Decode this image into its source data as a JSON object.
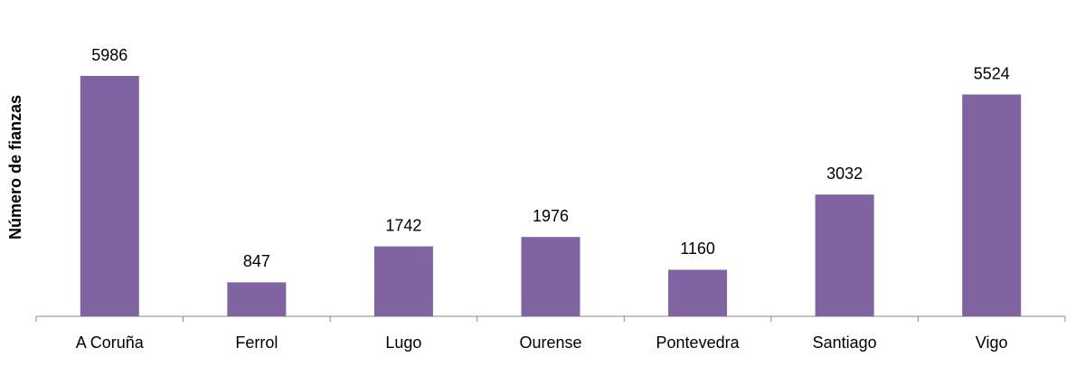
{
  "chart_data": {
    "type": "bar",
    "y_axis_label": "Número de fianzas",
    "categories": [
      "A Coruña",
      "Ferrol",
      "Lugo",
      "Ourense",
      "Pontevedra",
      "Santiago",
      "Vigo"
    ],
    "values": [
      5986,
      847,
      1742,
      1976,
      1160,
      3032,
      5524
    ],
    "color": "#8064a2"
  }
}
